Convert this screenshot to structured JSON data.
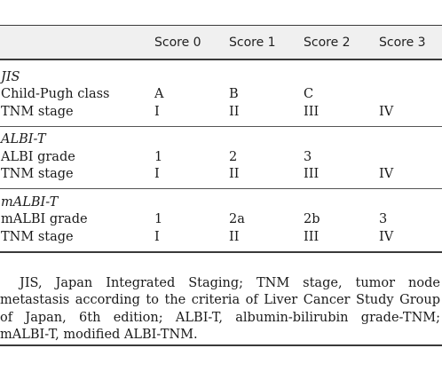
{
  "table": {
    "columns": [
      "",
      "Score 0",
      "Score 1",
      "Score 2",
      "Score 3"
    ],
    "sections": [
      {
        "title": "JIS",
        "rows": [
          {
            "label": "Child-Pugh class",
            "cells": [
              "A",
              "B",
              "C",
              ""
            ]
          },
          {
            "label": "TNM stage",
            "cells": [
              "I",
              "II",
              "III",
              "IV"
            ]
          }
        ]
      },
      {
        "title": "ALBI-T",
        "rows": [
          {
            "label": "ALBI grade",
            "cells": [
              "1",
              "2",
              "3",
              ""
            ]
          },
          {
            "label": "TNM stage",
            "cells": [
              "I",
              "II",
              "III",
              "IV"
            ]
          }
        ]
      },
      {
        "title": "mALBI-T",
        "rows": [
          {
            "label": "mALBI grade",
            "cells": [
              "1",
              "2a",
              "2b",
              "3"
            ]
          },
          {
            "label": "TNM stage",
            "cells": [
              "I",
              "II",
              "III",
              "IV"
            ]
          }
        ]
      }
    ]
  },
  "footnote": "JIS, Japan Integrated Staging; TNM stage, tumor node metastasis according to the criteria of Liver Cancer Study Group of Japan, 6th edition; ALBI-T, albumin-bilirubin grade-TNM; mALBI-T, modified ALBI-TNM."
}
